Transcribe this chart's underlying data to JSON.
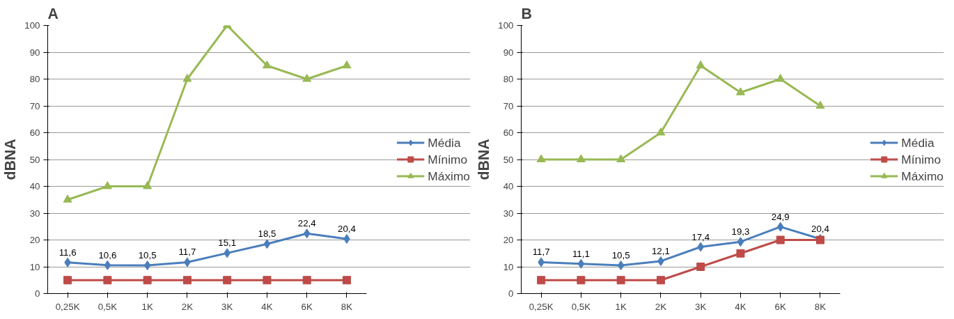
{
  "chart_data": [
    {
      "type": "line",
      "title": "A",
      "ylabel": "dBNA",
      "categories": [
        "0,25K",
        "0,5K",
        "1K",
        "2K",
        "3K",
        "4K",
        "6K",
        "8K"
      ],
      "ylim": [
        0,
        100
      ],
      "yticks": [
        0,
        10,
        20,
        30,
        40,
        50,
        60,
        70,
        80,
        90,
        100
      ],
      "grid": "y",
      "legend": "right",
      "series": [
        {
          "name": "Média",
          "color": "#4a7ebb",
          "marker": "diamond",
          "values": [
            11.6,
            10.6,
            10.5,
            11.7,
            15.1,
            18.5,
            22.4,
            20.4
          ],
          "value_labels": [
            "11,6",
            "10,6",
            "10,5",
            "11,7",
            "15,1",
            "18,5",
            "22,4",
            "20,4"
          ]
        },
        {
          "name": "Mínimo",
          "color": "#be4b48",
          "marker": "square",
          "values": [
            5,
            5,
            5,
            5,
            5,
            5,
            5,
            5
          ]
        },
        {
          "name": "Máximo",
          "color": "#98b954",
          "marker": "triangle",
          "values": [
            35,
            40,
            40,
            80,
            100,
            85,
            80,
            85
          ]
        }
      ]
    },
    {
      "type": "line",
      "title": "B",
      "ylabel": "dBNA",
      "categories": [
        "0,25K",
        "0,5K",
        "1K",
        "2K",
        "3K",
        "4K",
        "6K",
        "8K"
      ],
      "ylim": [
        0,
        100
      ],
      "yticks": [
        0,
        10,
        20,
        30,
        40,
        50,
        60,
        70,
        80,
        90,
        100
      ],
      "grid": "y",
      "legend": "right",
      "series": [
        {
          "name": "Média",
          "color": "#4a7ebb",
          "marker": "diamond",
          "values": [
            11.7,
            11.1,
            10.5,
            12.1,
            17.4,
            19.3,
            24.9,
            20.4
          ],
          "value_labels": [
            "11,7",
            "11,1",
            "10,5",
            "12,1",
            "17,4",
            "19,3",
            "24,9",
            "20,4"
          ]
        },
        {
          "name": "Mínimo",
          "color": "#be4b48",
          "marker": "square",
          "values": [
            5,
            5,
            5,
            5,
            10,
            15,
            20,
            20
          ]
        },
        {
          "name": "Máximo",
          "color": "#98b954",
          "marker": "triangle",
          "values": [
            50,
            50,
            50,
            60,
            85,
            75,
            80,
            70
          ]
        }
      ]
    }
  ]
}
